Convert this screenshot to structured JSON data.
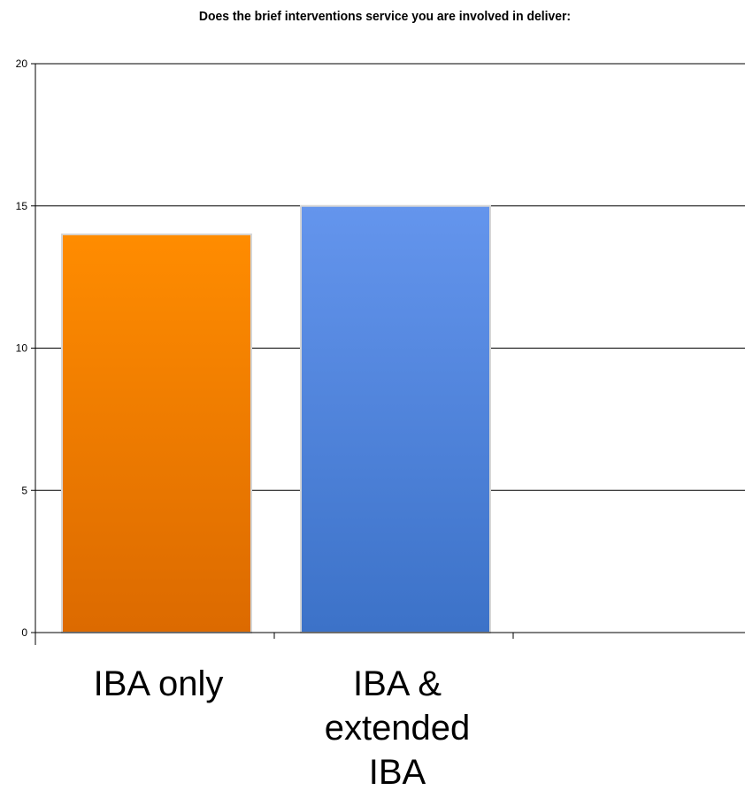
{
  "chart_data": {
    "type": "bar",
    "title": "Does the brief interventions service you are involved in deliver:",
    "xlabel": "",
    "ylabel": "",
    "categories": [
      "IBA only",
      "IBA & extended IBA"
    ],
    "category_label_lines": [
      [
        "IBA only"
      ],
      [
        "IBA &",
        "extended",
        "IBA"
      ]
    ],
    "values": [
      14,
      15
    ],
    "ylim": [
      0,
      20
    ],
    "yticks": [
      0,
      5,
      10,
      15,
      20
    ],
    "grid": true,
    "legend": "none",
    "bar_colors": [
      {
        "top": "#ff8c00",
        "bottom": "#dc6a00"
      },
      {
        "top": "#6495ed",
        "bottom": "#3c72c8"
      }
    ]
  }
}
